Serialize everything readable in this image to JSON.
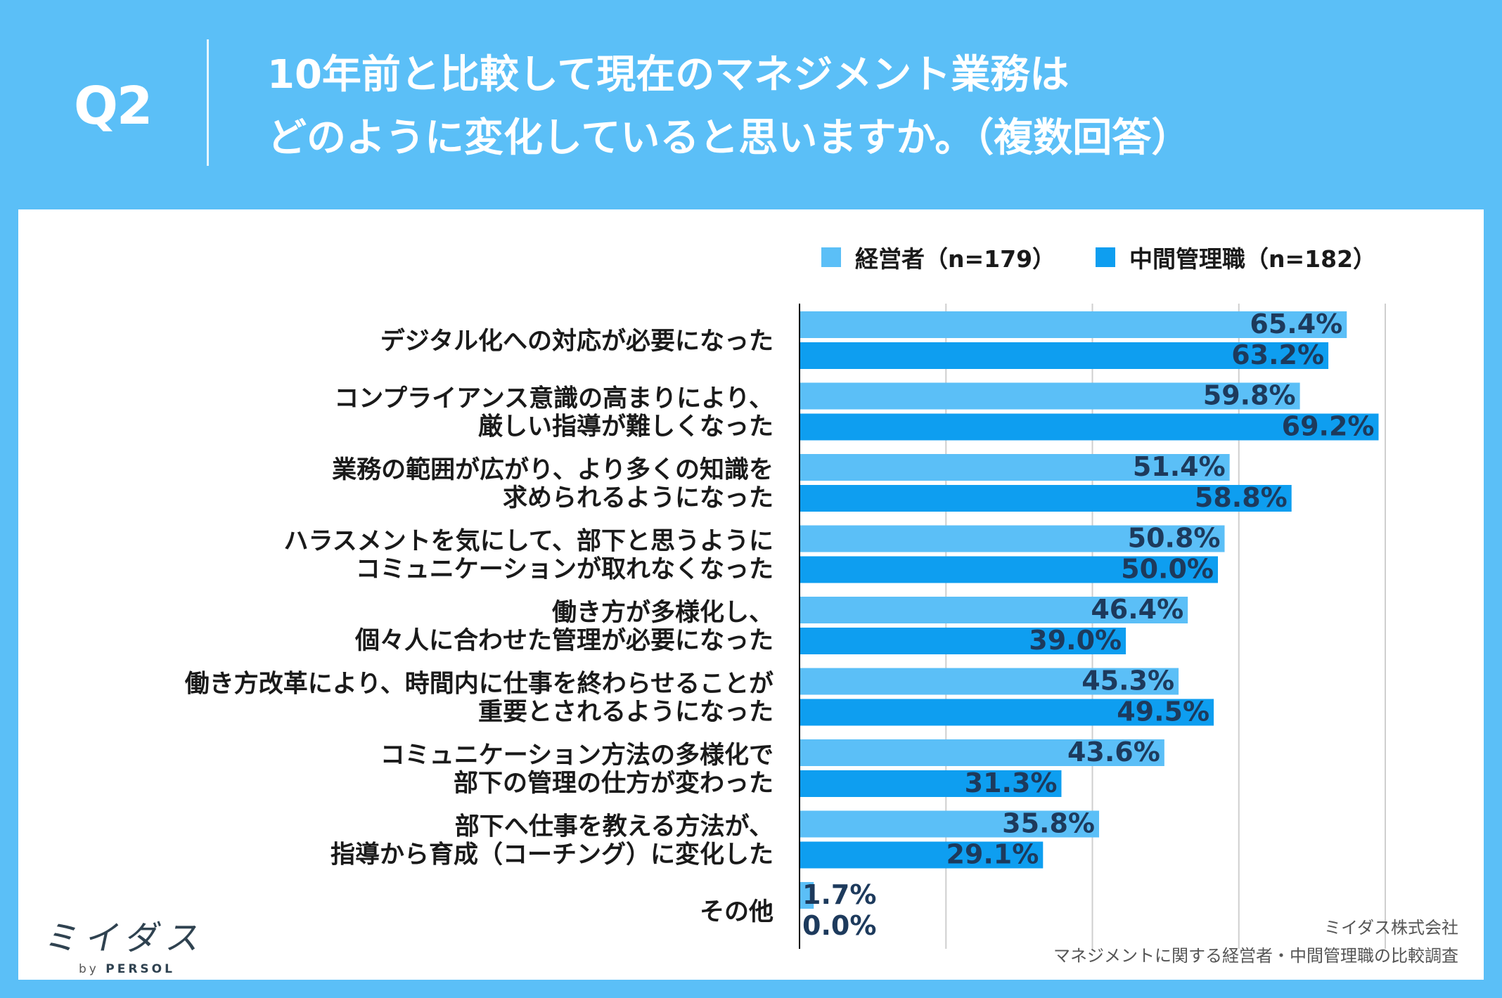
{
  "header": {
    "question_label": "Q2",
    "title_line1": "10年前と比較して現在のマネジメント業務は",
    "title_line2": "どのように変化していると思いますか。（複数回答）"
  },
  "chart_data": {
    "type": "bar",
    "orientation": "horizontal",
    "categories": [
      [
        "デジタル化への対応が必要になった"
      ],
      [
        "コンプライアンス意識の高まりにより、",
        "厳しい指導が難しくなった"
      ],
      [
        "業務の範囲が広がり、より多くの知識を",
        "求められるようになった"
      ],
      [
        "ハラスメントを気にして、部下と思うように",
        "コミュニケーションが取れなくなった"
      ],
      [
        "働き方が多様化し、",
        "個々人に合わせた管理が必要になった"
      ],
      [
        "働き方改革により、時間内に仕事を終わらせることが",
        "重要とされるようになった"
      ],
      [
        "コミュニケーション方法の多様化で",
        "部下の管理の仕方が変わった"
      ],
      [
        "部下へ仕事を教える方法が、",
        "指導から育成（コーチング）に変化した"
      ],
      [
        "その他"
      ]
    ],
    "series": [
      {
        "name": "経営者（n=179）",
        "color": "#5bbff7",
        "values": [
          65.4,
          59.8,
          51.4,
          50.8,
          46.4,
          45.3,
          43.6,
          35.8,
          1.7
        ],
        "labels": [
          "65.4%",
          "59.8%",
          "51.4%",
          "50.8%",
          "46.4%",
          "45.3%",
          "43.6%",
          "35.8%",
          "1.7%"
        ]
      },
      {
        "name": "中間管理職（n=182）",
        "color": "#0e9ef0",
        "values": [
          63.2,
          69.2,
          58.8,
          50.0,
          39.0,
          49.5,
          31.3,
          29.1,
          0.0
        ],
        "labels": [
          "63.2%",
          "69.2%",
          "58.8%",
          "50.0%",
          "39.0%",
          "49.5%",
          "31.3%",
          "29.1%",
          "0.0%"
        ]
      }
    ],
    "xlim": [
      0,
      70
    ],
    "grid_step": 17.5,
    "grid": true,
    "legend": "top-right"
  },
  "footer": {
    "logo_text": "ミイダス",
    "logo_by": "by",
    "logo_brand": "PERSOL",
    "source_line1": "ミイダス株式会社",
    "source_line2": "マネジメントに関する経営者・中間管理職の比較調査"
  }
}
